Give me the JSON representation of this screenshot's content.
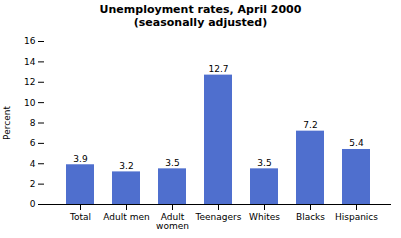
{
  "chart_data": {
    "type": "bar",
    "title": "Unemployment rates, April 2000\n(seasonally adjusted)",
    "categories": [
      "Total",
      "Adult men",
      "Adult\nwomen",
      "Teenagers",
      "Whites",
      "Blacks",
      "Hispanics"
    ],
    "values": [
      3.9,
      3.2,
      3.5,
      12.7,
      3.5,
      7.2,
      5.4
    ],
    "color": "#4f6fce",
    "ylabel": "Percent",
    "ylim": [
      0,
      16
    ],
    "yticks": [
      0,
      2,
      4,
      6,
      8,
      10,
      12,
      14,
      16
    ],
    "data_labels": true,
    "grid": false
  }
}
